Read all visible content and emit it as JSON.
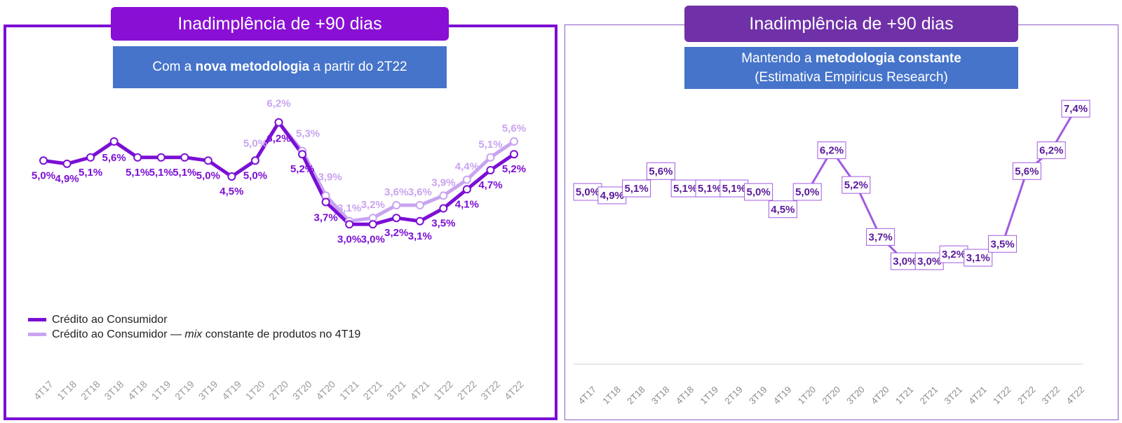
{
  "left": {
    "title": "Inadimplência de +90 dias",
    "subtitle_pre": "Com a ",
    "subtitle_bold": "nova metodologia",
    "subtitle_post": " a partir do 2T22",
    "legend": [
      {
        "pre": "Crédito ao Consumidor",
        "italic": "",
        "post": ""
      },
      {
        "pre": "Crédito ao Consumidor — ",
        "italic": "mix",
        "post": " constante de produtos no 4T19"
      }
    ]
  },
  "right": {
    "title": "Inadimplência de +90 dias",
    "subtitle_line1_pre": "Mantendo a ",
    "subtitle_line1_bold": "metodologia constante",
    "subtitle_line2": "(Estimativa Empiricus Research)"
  },
  "colors": {
    "dark": "#7B0FD4",
    "light": "#C9A4F0",
    "right_line": "#A05BE0",
    "label_dark": "#7B0FD4",
    "label_light": "#C9A4F0",
    "box_label": "#5A1A9A"
  },
  "chart_data": [
    {
      "type": "line",
      "categories": [
        "4T17",
        "1T18",
        "2T18",
        "3T18",
        "4T18",
        "1T19",
        "2T19",
        "3T19",
        "4T19",
        "1T20",
        "2T20",
        "3T20",
        "4T20",
        "1T21",
        "2T21",
        "3T21",
        "4T21",
        "1T22",
        "2T22",
        "3T22",
        "4T22"
      ],
      "series": [
        {
          "name": "Crédito ao Consumidor",
          "values": [
            5.0,
            4.9,
            5.1,
            5.6,
            5.1,
            5.1,
            5.1,
            5.0,
            4.5,
            5.0,
            6.2,
            5.2,
            3.7,
            3.0,
            3.0,
            3.2,
            3.1,
            3.5,
            4.1,
            4.7,
            5.2
          ],
          "labels": [
            "5,0%",
            "4,9%",
            "5,1%",
            "5,6%",
            "5,1%",
            "5,1%",
            "5,1%",
            "5,0%",
            "4,5%",
            "5,0%",
            "6,2%",
            "5,2%",
            "3,7%",
            "3,0%",
            "3,0%",
            "3,2%",
            "3,1%",
            "3,5%",
            "4,1%",
            "4,7%",
            "5,2%"
          ]
        },
        {
          "name": "Crédito ao Consumidor — mix constante de produtos no 4T19",
          "values": [
            null,
            null,
            null,
            null,
            null,
            null,
            null,
            null,
            4.5,
            5.0,
            6.2,
            5.3,
            3.9,
            3.1,
            3.2,
            3.6,
            3.6,
            3.9,
            4.4,
            5.1,
            5.6
          ],
          "labels": [
            "",
            "",
            "",
            "",
            "",
            "",
            "",
            "",
            "",
            "5,0%",
            "6,2%",
            "5,3%",
            "3,9%",
            "3,1%",
            "3,2%",
            "3,6%",
            "3,6%",
            "3,9%",
            "4,4%",
            "5,1%",
            "5,6%"
          ]
        }
      ]
    },
    {
      "type": "line",
      "categories": [
        "4T17",
        "1T18",
        "2T18",
        "3T18",
        "4T18",
        "1T19",
        "2T19",
        "3T19",
        "4T19",
        "1T20",
        "2T20",
        "3T20",
        "4T20",
        "1T21",
        "2T21",
        "3T21",
        "4T21",
        "1T22",
        "2T22",
        "3T22",
        "4T22"
      ],
      "series": [
        {
          "values": [
            5.0,
            4.9,
            5.1,
            5.6,
            5.1,
            5.1,
            5.1,
            5.0,
            4.5,
            5.0,
            6.2,
            5.2,
            3.7,
            3.0,
            3.0,
            3.2,
            3.1,
            3.5,
            5.6,
            6.2,
            7.4
          ],
          "labels": [
            "5,0%",
            "4,9%",
            "5,1%",
            "5,6%",
            "5,1%",
            "5,1%",
            "5,1%",
            "5,0%",
            "4,5%",
            "5,0%",
            "6,2%",
            "5,2%",
            "3,7%",
            "3,0%",
            "3,0%",
            "3,2%",
            "3,1%",
            "3,5%",
            "5,6%",
            "6,2%",
            "7,4%"
          ]
        }
      ]
    }
  ]
}
